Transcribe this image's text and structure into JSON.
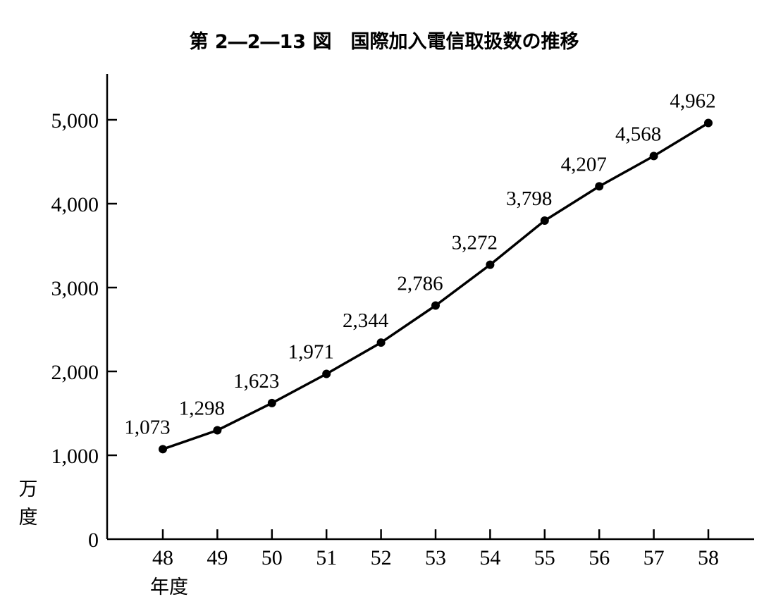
{
  "chart_data": {
    "type": "line",
    "title": "第 2―2―13 図　国際加入電信取扱数の推移",
    "xlabel": "年度",
    "ylabel": "万度",
    "categories": [
      "48",
      "49",
      "50",
      "51",
      "52",
      "53",
      "54",
      "55",
      "56",
      "57",
      "58"
    ],
    "series": [
      {
        "values": [
          1073,
          1298,
          1623,
          1971,
          2344,
          2786,
          3272,
          3798,
          4207,
          4568,
          4962
        ],
        "data_labels": [
          "1,073",
          "1,298",
          "1,623",
          "1,971",
          "2,344",
          "2,786",
          "3,272",
          "3,798",
          "4,207",
          "4,568",
          "4,962"
        ]
      }
    ],
    "x_points": [
      "48",
      "49",
      "50",
      "51",
      "52",
      "53",
      "54",
      "55",
      "56",
      "57",
      "58"
    ],
    "y_ticks": [
      0,
      1000,
      2000,
      3000,
      4000,
      5000
    ],
    "y_tick_labels": [
      "0",
      "1,000",
      "2,000",
      "3,000",
      "4,000",
      "5,000"
    ],
    "ylim": [
      0,
      5500
    ],
    "grid": false,
    "legend": "none"
  }
}
